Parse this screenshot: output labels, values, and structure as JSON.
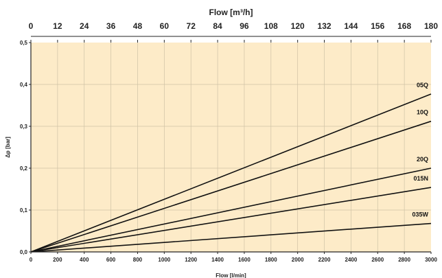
{
  "chart_data": {
    "type": "line",
    "title": "",
    "xlabel": "Flow [l/min]",
    "x2label": "Flow [m³/h]",
    "ylabel": "Δp [bar]",
    "xlim": [
      0,
      3000
    ],
    "x2lim": [
      0,
      180
    ],
    "ylim": [
      0,
      0.5
    ],
    "x_ticks": [
      "0",
      "200",
      "400",
      "600",
      "800",
      "1000",
      "1200",
      "1400",
      "1600",
      "1800",
      "2000",
      "2200",
      "2400",
      "2600",
      "2800",
      "3000"
    ],
    "x2_ticks": [
      "0",
      "12",
      "24",
      "36",
      "48",
      "60",
      "72",
      "84",
      "96",
      "108",
      "120",
      "132",
      "144",
      "156",
      "168",
      "180"
    ],
    "y_ticks": [
      "0,0",
      "0,1",
      "0,2",
      "0,3",
      "0,4",
      "0,5"
    ],
    "grid": true,
    "colors": {
      "plot_background": "#fdebc8",
      "grid": "#cfc2a6",
      "line": "#111111",
      "axis": "#222222"
    },
    "series": [
      {
        "name": "05Q",
        "x": [
          0,
          3000
        ],
        "y": [
          0,
          0.377
        ]
      },
      {
        "name": "10Q",
        "x": [
          0,
          3000
        ],
        "y": [
          0,
          0.312
        ]
      },
      {
        "name": "20Q",
        "x": [
          0,
          3000
        ],
        "y": [
          0,
          0.2
        ]
      },
      {
        "name": "015N",
        "x": [
          0,
          3000
        ],
        "y": [
          0,
          0.154
        ]
      },
      {
        "name": "035W",
        "x": [
          0,
          3000
        ],
        "y": [
          0,
          0.068
        ]
      }
    ]
  }
}
